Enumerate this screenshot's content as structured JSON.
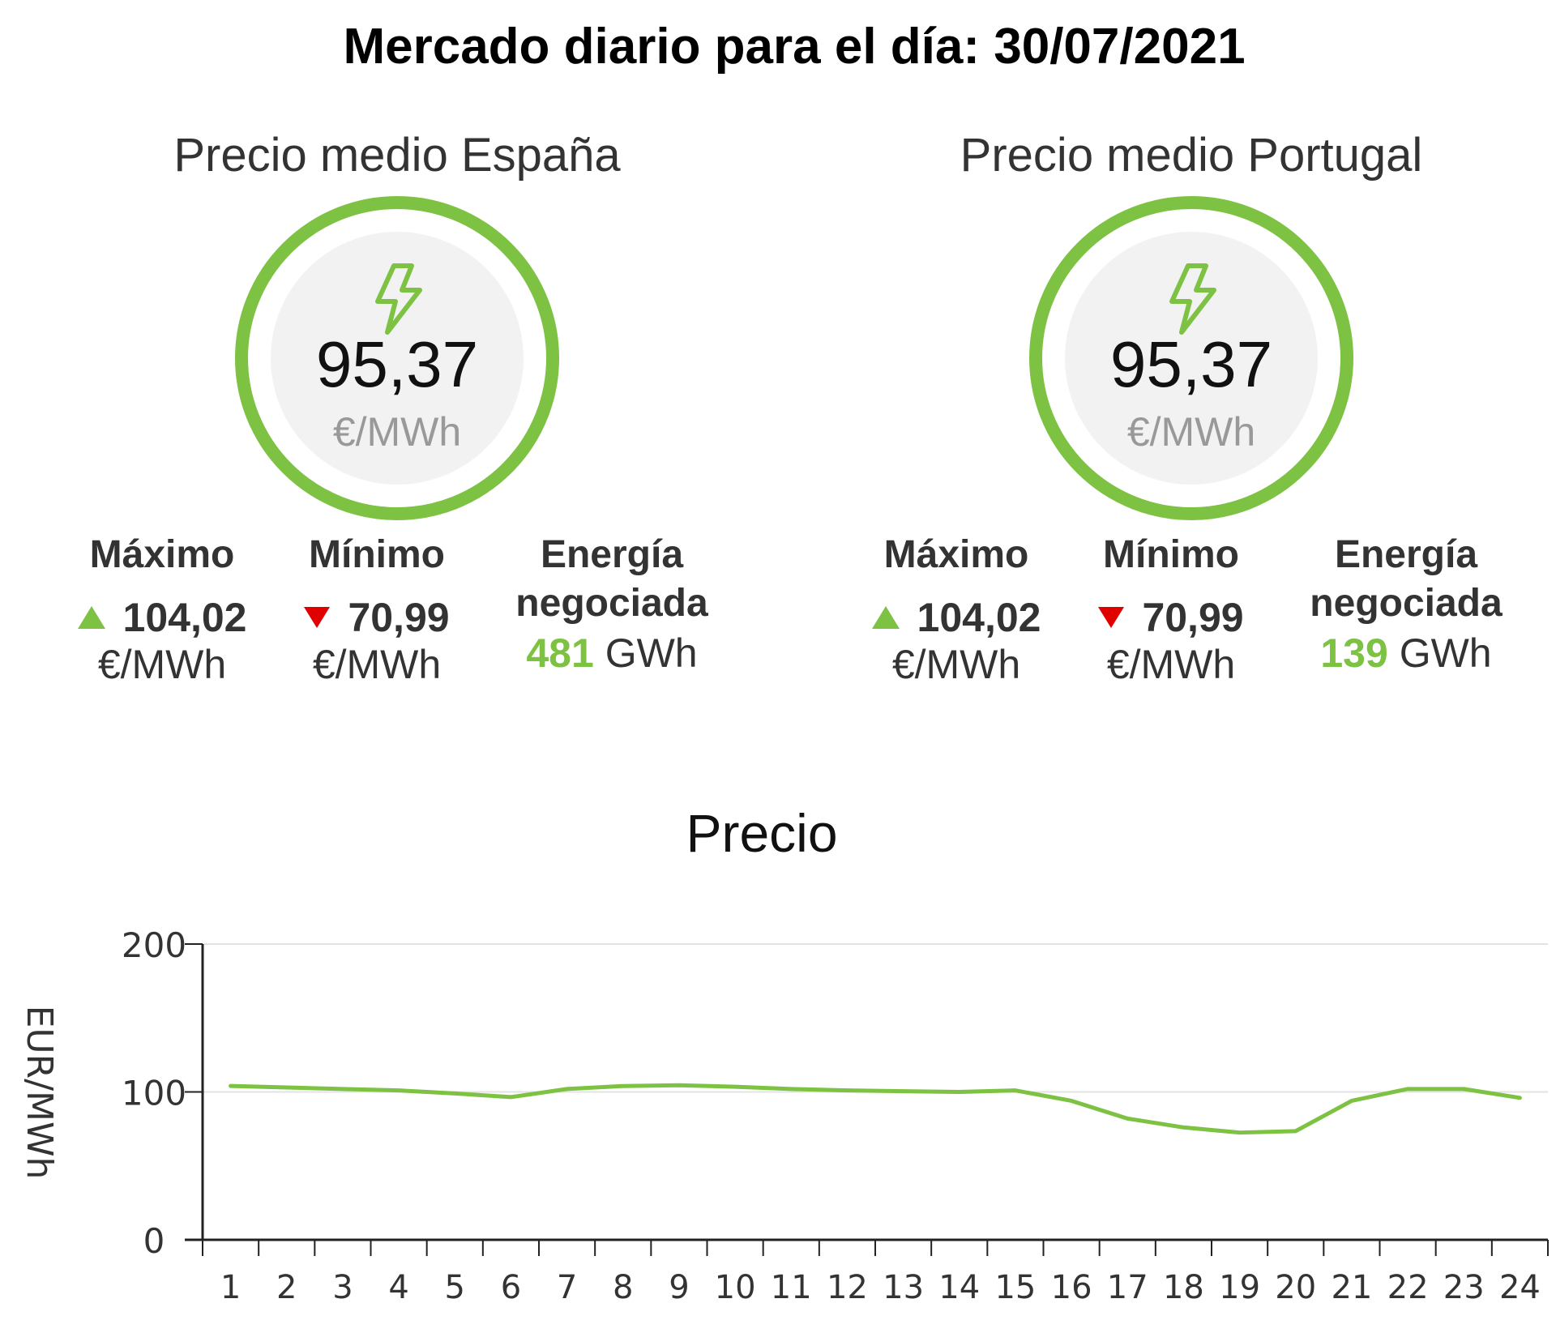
{
  "header": {
    "title": "Mercado diario para el día: 30/07/2021"
  },
  "panels": [
    {
      "title": "Precio medio España",
      "icon": "lightning-bolt-icon",
      "average": "95,37",
      "average_unit": "€/MWh",
      "max_label": "Máximo",
      "max_value": "104,02",
      "max_unit": "€/MWh",
      "min_label": "Mínimo",
      "min_value": "70,99",
      "min_unit": "€/MWh",
      "energy_label_1": "Energía",
      "energy_label_2": "negociada",
      "energy_value": "481",
      "energy_unit": "GWh"
    },
    {
      "title": "Precio medio Portugal",
      "icon": "lightning-bolt-icon",
      "average": "95,37",
      "average_unit": "€/MWh",
      "max_label": "Máximo",
      "max_value": "104,02",
      "max_unit": "€/MWh",
      "min_label": "Mínimo",
      "min_value": "70,99",
      "min_unit": "€/MWh",
      "energy_label_1": "Energía",
      "energy_label_2": "negociada",
      "energy_value": "139",
      "energy_unit": "GWh"
    }
  ],
  "colors": {
    "accent": "#7dc242",
    "down": "#e00000",
    "unit_gray": "#999999"
  },
  "chart_data": {
    "type": "line",
    "title": "Precio",
    "xlabel": "",
    "ylabel": "EUR/MWh",
    "ylim": [
      0,
      200
    ],
    "yticks": [
      0,
      100,
      200
    ],
    "grid": true,
    "categories": [
      "1",
      "2",
      "3",
      "4",
      "5",
      "6",
      "7",
      "8",
      "9",
      "10",
      "11",
      "12",
      "13",
      "14",
      "15",
      "16",
      "17",
      "18",
      "19",
      "20",
      "21",
      "22",
      "23",
      "24"
    ],
    "series": [
      {
        "values": [
          104.02,
          103,
          102,
          101,
          99,
          96.5,
          102,
          104,
          104.5,
          103.5,
          102,
          101,
          100.5,
          100,
          101,
          94,
          82,
          76,
          72.5,
          73.5,
          94,
          102,
          102,
          96
        ],
        "color": "#7dc242"
      }
    ]
  }
}
